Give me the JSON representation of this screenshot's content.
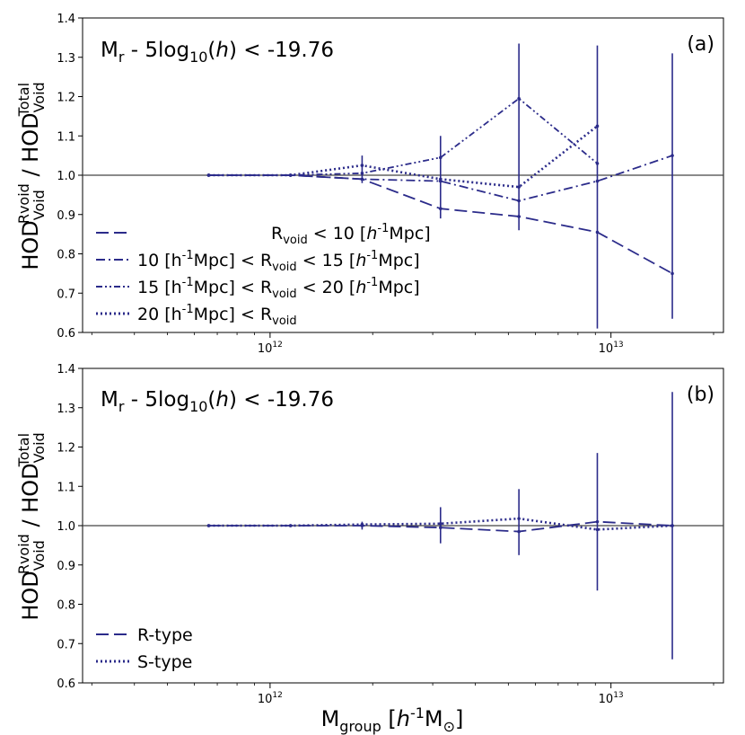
{
  "colors": {
    "line": "#2b2b8a",
    "ref": "#444444",
    "axis": "#000000"
  },
  "chart_data": [
    {
      "panel": "(a)",
      "type": "line",
      "title": "Mr - 5log10(h) < -19.76",
      "ylabel": "HOD_Void^Rvoid / HOD_Void^Total",
      "xlabel": "",
      "xscale": "log",
      "xlim_log10": [
        11.45,
        13.33
      ],
      "ylim": [
        0.6,
        1.4
      ],
      "yticks": [
        0.6,
        0.7,
        0.8,
        0.9,
        1.0,
        1.1,
        1.2,
        1.3,
        1.4
      ],
      "xticks_log10": [
        12,
        13
      ],
      "reference_line": 1.0,
      "legend_position": "lower-left",
      "x_log10": [
        11.82,
        12.06,
        12.27,
        12.5,
        12.73,
        12.96,
        13.18
      ],
      "series": [
        {
          "name": "Rvoid < 10 [h-1Mpc]",
          "dash": "14,6",
          "values": [
            1.0,
            1.0,
            0.99,
            0.915,
            0.895,
            0.855,
            0.75
          ]
        },
        {
          "name": "10 [h-1Mpc] < Rvoid < 15 [h-1Mpc]",
          "dash": "10,4,2,4",
          "values": [
            1.0,
            1.0,
            0.99,
            0.985,
            0.935,
            0.985,
            1.05
          ]
        },
        {
          "name": "15 [h-1Mpc] < Rvoid < 20 [h-1Mpc]",
          "dash": "7,3,2,3,2,3",
          "values": [
            1.0,
            1.0,
            1.005,
            1.045,
            1.195,
            1.03,
            null
          ]
        },
        {
          "name": "20 [h-1Mpc] < Rvoid",
          "dash": "2,3",
          "values": [
            1.0,
            1.0,
            1.025,
            0.99,
            0.97,
            1.125,
            null
          ]
        }
      ],
      "error_bars": [
        {
          "x_log10": 12.27,
          "low": 0.98,
          "high": 1.05
        },
        {
          "x_log10": 12.5,
          "low": 0.89,
          "high": 1.1
        },
        {
          "x_log10": 12.73,
          "low": 0.86,
          "high": 1.335
        },
        {
          "x_log10": 12.96,
          "low": 0.61,
          "high": 1.33
        },
        {
          "x_log10": 13.18,
          "low": 0.635,
          "high": 1.31
        }
      ]
    },
    {
      "panel": "(b)",
      "type": "line",
      "title": "Mr - 5log10(h) < -19.76",
      "ylabel": "HOD_Void^Rvoid / HOD_Void^Total",
      "xlabel": "Mgroup [h-1M_sun]",
      "xscale": "log",
      "xlim_log10": [
        11.45,
        13.33
      ],
      "ylim": [
        0.6,
        1.4
      ],
      "yticks": [
        0.6,
        0.7,
        0.8,
        0.9,
        1.0,
        1.1,
        1.2,
        1.3,
        1.4
      ],
      "xticks_log10": [
        12,
        13
      ],
      "reference_line": 1.0,
      "legend_position": "lower-left",
      "x_log10": [
        11.82,
        12.06,
        12.27,
        12.5,
        12.73,
        12.96,
        13.18
      ],
      "series": [
        {
          "name": "R-type",
          "dash": "14,6",
          "values": [
            1.0,
            1.0,
            1.0,
            0.995,
            0.985,
            1.01,
            1.0
          ]
        },
        {
          "name": "S-type",
          "dash": "2,3",
          "values": [
            1.0,
            1.0,
            1.003,
            1.005,
            1.018,
            0.99,
            1.0
          ]
        }
      ],
      "error_bars": [
        {
          "x_log10": 12.27,
          "low": 0.99,
          "high": 1.01
        },
        {
          "x_log10": 12.5,
          "low": 0.955,
          "high": 1.047
        },
        {
          "x_log10": 12.73,
          "low": 0.925,
          "high": 1.093
        },
        {
          "x_log10": 12.96,
          "low": 0.835,
          "high": 1.185
        },
        {
          "x_log10": 13.18,
          "low": 0.66,
          "high": 1.34
        }
      ]
    }
  ],
  "labels": {
    "panel_a": "(a)",
    "panel_b": "(b)",
    "x_tick_base": "10",
    "x_tick_exp_12": "12",
    "x_tick_exp_13": "13",
    "title_M": "M",
    "title_r": "r",
    "title_mid": " - 5log",
    "title_10": "10",
    "title_open": "(",
    "title_h": "h",
    "title_close": ") < -19.76",
    "ylab_HOD1": "HOD",
    "ylab_sup1": "Rvoid",
    "ylab_sub": "Void",
    "ylab_slash": " / HOD",
    "ylab_sup2": "Total",
    "xlab_M": "M",
    "xlab_sub": "group",
    "xlab_open": " [",
    "xlab_h": "h",
    "xlab_exp": "-1",
    "xlab_Msun": "M",
    "xlab_sun": "⊙",
    "xlab_close": "]",
    "leg_R": "R",
    "leg_void": "void",
    "leg_lt10": " < 10 [",
    "leg_h": "h",
    "leg_exp": "-1",
    "leg_Mpc": "Mpc]",
    "leg_10": "10 [h",
    "leg_15": "15 [h",
    "leg_20": "20 [h",
    "leg_mpc_bracket": "Mpc] < R",
    "leg_lt15": " < 15 [",
    "leg_lt20": " < 20 [",
    "leg_Rtype": "R-type",
    "leg_Stype": "S-type"
  }
}
